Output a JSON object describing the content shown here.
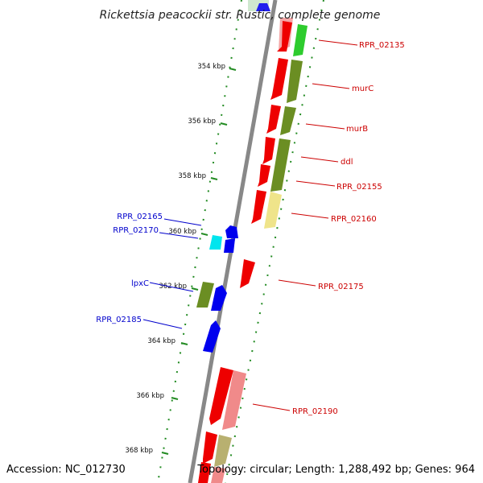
{
  "title": "Rickettsia peacockii str. Rustic, complete genome",
  "accession": "Accession: NC_012730",
  "summary": "Topology: circular; Length: 1,288,492 bp; Genes: 964",
  "colors": {
    "forward_label": "#cc0000",
    "reverse_label": "#0000cc",
    "cds_red": "#ee0000",
    "cds_pink": "#f08a8a",
    "cds_green": "#2ecc2e",
    "cds_olive": "#6b8e23",
    "cds_khaki": "#efe48a",
    "cds_blue": "#0000ee",
    "cds_cyan": "#00e5ee",
    "tick": "#228b22",
    "backbone": "#888888"
  },
  "ticks": [
    {
      "label": "354 kbp"
    },
    {
      "label": "356 kbp"
    },
    {
      "label": "358 kbp"
    },
    {
      "label": "360 kbp"
    },
    {
      "label": "362 kbp"
    },
    {
      "label": "364 kbp"
    },
    {
      "label": "366 kbp"
    },
    {
      "label": "368 kbp"
    }
  ],
  "forward_labels": [
    "RPR_02135",
    "murC",
    "murB",
    "ddl",
    "RPR_02155",
    "RPR_02160",
    "RPR_02175",
    "RPR_02190"
  ],
  "reverse_labels": [
    "RPR_02165",
    "RPR_02170",
    "lpxC",
    "RPR_02185"
  ]
}
